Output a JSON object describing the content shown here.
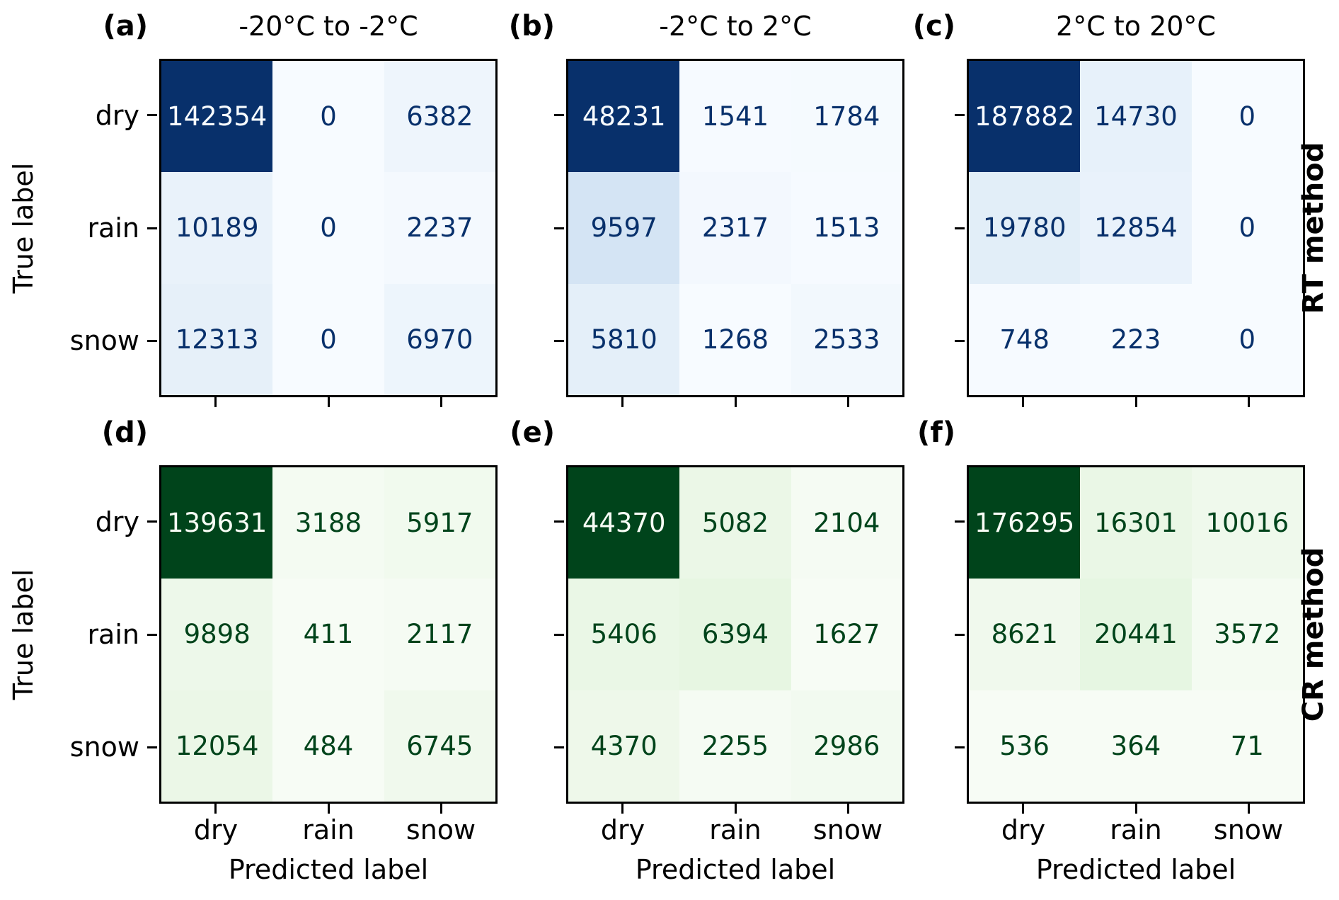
{
  "figure": {
    "background": "#ffffff",
    "ylabel": "True label",
    "xlabel": "Predicted label",
    "y_categories": [
      "dry",
      "rain",
      "snow"
    ],
    "x_categories": [
      "dry",
      "rain",
      "snow"
    ],
    "method_row_labels": [
      "RT method",
      "CR method"
    ],
    "column_titles": [
      "-20°C to -2°C",
      "-2°C to 2°C",
      "2°C to 20°C"
    ],
    "panel_letters": [
      "(a)",
      "(b)",
      "(c)",
      "(d)",
      "(e)",
      "(f)"
    ]
  },
  "colors": {
    "blues_colormap": [
      "#f7fbff",
      "#deebf7",
      "#c6dbef",
      "#9ecae1",
      "#6baed6",
      "#4292c6",
      "#2171b5",
      "#08519c",
      "#08306b"
    ],
    "greens_colormap": [
      "#f7fcf5",
      "#e5f5e0",
      "#c7e9c0",
      "#a1d99b",
      "#74c476",
      "#41ab5d",
      "#238b45",
      "#006d2c",
      "#00441b"
    ],
    "blue_dark_text": "#08306b",
    "green_dark_text": "#00441b",
    "light_text_on_blue": "#f7fbff",
    "light_text_on_green": "#f7fcf5",
    "axis_line": "#000000"
  },
  "chart_data": [
    {
      "type": "heatmap",
      "panel": "(a)",
      "method": "RT method",
      "temperature_range": "-20°C to -2°C",
      "colormap": "Blues",
      "x_categories": [
        "dry",
        "rain",
        "snow"
      ],
      "y_categories": [
        "dry",
        "rain",
        "snow"
      ],
      "values": [
        [
          142354,
          0,
          6382
        ],
        [
          10189,
          0,
          2237
        ],
        [
          12313,
          0,
          6970
        ]
      ]
    },
    {
      "type": "heatmap",
      "panel": "(b)",
      "method": "RT method",
      "temperature_range": "-2°C to 2°C",
      "colormap": "Blues",
      "x_categories": [
        "dry",
        "rain",
        "snow"
      ],
      "y_categories": [
        "dry",
        "rain",
        "snow"
      ],
      "values": [
        [
          48231,
          1541,
          1784
        ],
        [
          9597,
          2317,
          1513
        ],
        [
          5810,
          1268,
          2533
        ]
      ]
    },
    {
      "type": "heatmap",
      "panel": "(c)",
      "method": "RT method",
      "temperature_range": "2°C to 20°C",
      "colormap": "Blues",
      "x_categories": [
        "dry",
        "rain",
        "snow"
      ],
      "y_categories": [
        "dry",
        "rain",
        "snow"
      ],
      "values": [
        [
          187882,
          14730,
          0
        ],
        [
          19780,
          12854,
          0
        ],
        [
          748,
          223,
          0
        ]
      ]
    },
    {
      "type": "heatmap",
      "panel": "(d)",
      "method": "CR method",
      "temperature_range": "-20°C to -2°C",
      "colormap": "Greens",
      "x_categories": [
        "dry",
        "rain",
        "snow"
      ],
      "y_categories": [
        "dry",
        "rain",
        "snow"
      ],
      "values": [
        [
          139631,
          3188,
          5917
        ],
        [
          9898,
          411,
          2117
        ],
        [
          12054,
          484,
          6745
        ]
      ]
    },
    {
      "type": "heatmap",
      "panel": "(e)",
      "method": "CR method",
      "temperature_range": "-2°C to 2°C",
      "colormap": "Greens",
      "x_categories": [
        "dry",
        "rain",
        "snow"
      ],
      "y_categories": [
        "dry",
        "rain",
        "snow"
      ],
      "values": [
        [
          44370,
          5082,
          2104
        ],
        [
          5406,
          6394,
          1627
        ],
        [
          4370,
          2255,
          2986
        ]
      ]
    },
    {
      "type": "heatmap",
      "panel": "(f)",
      "method": "CR method",
      "temperature_range": "2°C to 20°C",
      "colormap": "Greens",
      "x_categories": [
        "dry",
        "rain",
        "snow"
      ],
      "y_categories": [
        "dry",
        "rain",
        "snow"
      ],
      "values": [
        [
          176295,
          16301,
          10016
        ],
        [
          8621,
          20441,
          3572
        ],
        [
          536,
          364,
          71
        ]
      ]
    }
  ]
}
